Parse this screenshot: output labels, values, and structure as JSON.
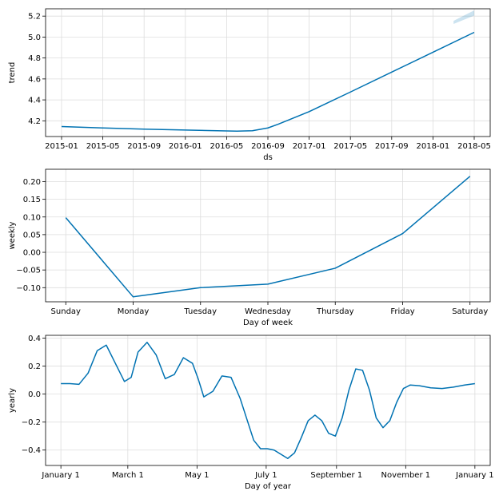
{
  "chart_data": [
    {
      "type": "line",
      "xlabel": "ds",
      "ylabel": "trend",
      "ylim": [
        4.05,
        5.27
      ],
      "x_ticks": [
        "2015-01",
        "2015-05",
        "2015-09",
        "2016-01",
        "2016-05",
        "2016-09",
        "2017-01",
        "2017-05",
        "2017-09",
        "2018-01",
        "2018-05"
      ],
      "x_tick_positions": [
        0,
        4,
        8,
        12,
        16,
        20,
        24,
        28,
        32,
        36,
        40
      ],
      "y_ticks": [
        4.2,
        4.4,
        4.6,
        4.8,
        5.0,
        5.2
      ],
      "y_tick_labels": [
        "4.2",
        "4.4",
        "4.6",
        "4.8",
        "5.0",
        "5.2"
      ],
      "grid": true,
      "series": [
        {
          "name": "trend",
          "color": "#0072B2",
          "x": [
            0,
            4,
            8,
            12,
            16,
            17,
            18.5,
            20,
            21,
            24,
            28,
            32,
            36,
            40
          ],
          "values": [
            4.145,
            4.132,
            4.121,
            4.112,
            4.103,
            4.101,
            4.105,
            4.132,
            4.168,
            4.288,
            4.475,
            4.665,
            4.855,
            5.045
          ]
        }
      ],
      "uncertainty_band": {
        "color": "#0072B2",
        "x": [
          38,
          39,
          40
        ],
        "upper": [
          5.155,
          5.205,
          5.255
        ],
        "lower": [
          5.125,
          5.165,
          5.205
        ]
      },
      "notes": "x values are months since 2015-01"
    },
    {
      "type": "line",
      "xlabel": "Day of week",
      "ylabel": "weekly",
      "ylim": [
        -0.14,
        0.235
      ],
      "categories": [
        "Sunday",
        "Monday",
        "Tuesday",
        "Wednesday",
        "Thursday",
        "Friday",
        "Saturday"
      ],
      "y_ticks": [
        -0.1,
        -0.05,
        0.0,
        0.05,
        0.1,
        0.15,
        0.2
      ],
      "y_tick_labels": [
        "−0.10",
        "−0.05",
        "0.00",
        "0.05",
        "0.10",
        "0.15",
        "0.20"
      ],
      "grid": true,
      "series": [
        {
          "name": "weekly",
          "color": "#0072B2",
          "values": [
            0.098,
            -0.126,
            -0.1,
            -0.09,
            -0.045,
            0.053,
            0.215
          ]
        }
      ]
    },
    {
      "type": "line",
      "xlabel": "Day of year",
      "ylabel": "yearly",
      "ylim": [
        -0.51,
        0.42
      ],
      "x_ticks": [
        "January 1",
        "March 1",
        "May 1",
        "July 1",
        "September 1",
        "November 1",
        "January 1"
      ],
      "x_tick_positions": [
        0,
        59,
        120,
        181,
        243,
        304,
        365
      ],
      "y_ticks": [
        -0.4,
        -0.2,
        0.0,
        0.2,
        0.4
      ],
      "y_tick_labels": [
        "−0.4",
        "−0.2",
        "0.0",
        "0.2",
        "0.4"
      ],
      "grid": true,
      "series": [
        {
          "name": "yearly",
          "color": "#0072B2",
          "x": [
            0,
            8,
            16,
            24,
            32,
            40,
            48,
            56,
            62,
            68,
            76,
            84,
            92,
            100,
            108,
            116,
            121,
            126,
            134,
            142,
            150,
            158,
            166,
            170,
            176,
            182,
            188,
            194,
            200,
            206,
            212,
            218,
            224,
            230,
            236,
            242,
            248,
            254,
            260,
            266,
            272,
            278,
            284,
            290,
            296,
            302,
            308,
            316,
            326,
            336,
            346,
            356,
            365
          ],
          "values": [
            0.075,
            0.075,
            0.07,
            0.15,
            0.31,
            0.35,
            0.22,
            0.09,
            0.12,
            0.3,
            0.37,
            0.28,
            0.11,
            0.14,
            0.26,
            0.22,
            0.11,
            -0.02,
            0.02,
            0.13,
            0.12,
            -0.03,
            -0.23,
            -0.33,
            -0.39,
            -0.39,
            -0.4,
            -0.43,
            -0.46,
            -0.42,
            -0.31,
            -0.19,
            -0.15,
            -0.19,
            -0.28,
            -0.3,
            -0.17,
            0.03,
            0.18,
            0.17,
            0.03,
            -0.17,
            -0.24,
            -0.19,
            -0.06,
            0.04,
            0.065,
            0.06,
            0.045,
            0.04,
            0.05,
            0.065,
            0.075
          ]
        }
      ],
      "notes": "x values are day-of-year offsets from January 1"
    }
  ]
}
